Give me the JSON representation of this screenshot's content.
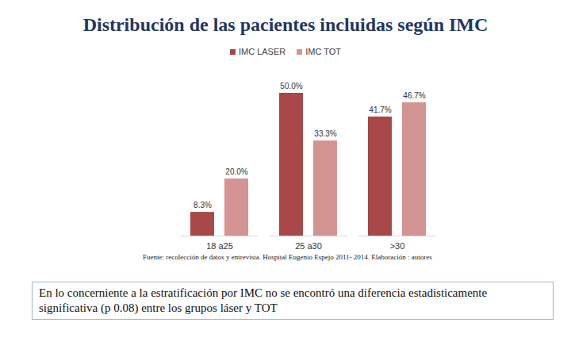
{
  "chart_data": {
    "type": "bar",
    "title": "Distribución de las pacientes incluidas según IMC",
    "categories": [
      "18 a25",
      "25 a30",
      ">30"
    ],
    "series": [
      {
        "name": "IMC LASER",
        "color": "#a84848",
        "values": [
          8.3,
          50.0,
          41.7
        ],
        "value_labels": [
          "8.3%",
          "50.0%",
          "41.7%"
        ]
      },
      {
        "name": "IMC TOT",
        "color": "#d49494",
        "values": [
          20.0,
          33.3,
          46.7
        ],
        "value_labels": [
          "20.0%",
          "33.3%",
          "46.7%"
        ]
      }
    ],
    "ylim": [
      0,
      55
    ],
    "tick_labels": "x",
    "data_labels": true,
    "legend": "top",
    "source": "Fuente: recolección de datos y entrevista. Hospital Eugenio Espejo 2011- 2014. Elaboración : autores",
    "annotation": "En lo concerniente a la estratificación por IMC no se encontró una diferencia estadisticamente significativa (p 0.08) entre los grupos láser y TOT"
  }
}
